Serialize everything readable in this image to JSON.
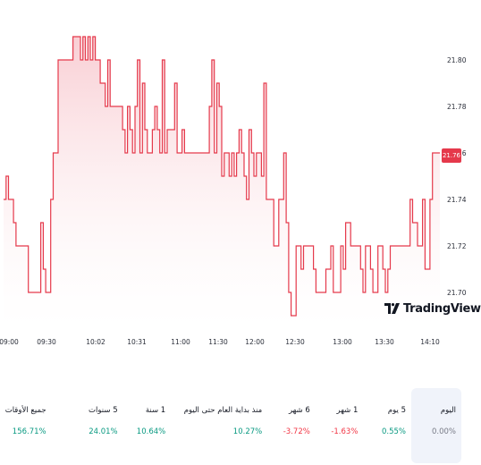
{
  "chart_data": {
    "type": "area",
    "ylim": [
      21.685,
      21.815
    ],
    "y_ticks": [
      "21.80",
      "21.78",
      "21.76",
      "21.74",
      "21.72",
      "21.70"
    ],
    "x_ticks": [
      "09:00",
      "09:30",
      "10:02",
      "10:31",
      "11:00",
      "11:30",
      "12:00",
      "12:30",
      "13:00",
      "13:30",
      "14:10"
    ],
    "last_price": "21.76",
    "series": [
      {
        "values": [
          21.74,
          21.75,
          21.74,
          21.74,
          21.73,
          21.72,
          21.72,
          21.72,
          21.72,
          21.72,
          21.7,
          21.7,
          21.7,
          21.7,
          21.7,
          21.73,
          21.71,
          21.7,
          21.7,
          21.74,
          21.76,
          21.76,
          21.8,
          21.8,
          21.8,
          21.8,
          21.8,
          21.8,
          21.81,
          21.81,
          21.81,
          21.8,
          21.81,
          21.8,
          21.81,
          21.8,
          21.81,
          21.8,
          21.8,
          21.79,
          21.79,
          21.78,
          21.8,
          21.78,
          21.78,
          21.78,
          21.78,
          21.78,
          21.77,
          21.76,
          21.78,
          21.77,
          21.76,
          21.78,
          21.8,
          21.76,
          21.79,
          21.77,
          21.76,
          21.76,
          21.77,
          21.78,
          21.77,
          21.76,
          21.8,
          21.76,
          21.77,
          21.77,
          21.77,
          21.79,
          21.76,
          21.76,
          21.77,
          21.76,
          21.76,
          21.76,
          21.76,
          21.76,
          21.76,
          21.76,
          21.76,
          21.76,
          21.76,
          21.78,
          21.8,
          21.76,
          21.79,
          21.78,
          21.75,
          21.76,
          21.76,
          21.75,
          21.76,
          21.75,
          21.76,
          21.77,
          21.76,
          21.75,
          21.74,
          21.77,
          21.76,
          21.75,
          21.76,
          21.76,
          21.75,
          21.79,
          21.74,
          21.74,
          21.74,
          21.72,
          21.72,
          21.74,
          21.74,
          21.76,
          21.73,
          21.7,
          21.69,
          21.69,
          21.72,
          21.72,
          21.71,
          21.72,
          21.72,
          21.72,
          21.72,
          21.71,
          21.7,
          21.7,
          21.7,
          21.7,
          21.71,
          21.71,
          21.72,
          21.7,
          21.7,
          21.7,
          21.72,
          21.71,
          21.73,
          21.73,
          21.72,
          21.72,
          21.72,
          21.72,
          21.71,
          21.7,
          21.72,
          21.72,
          21.71,
          21.7,
          21.7,
          21.72,
          21.72,
          21.71,
          21.7,
          21.71,
          21.72,
          21.72,
          21.72,
          21.72,
          21.72,
          21.72,
          21.72,
          21.72,
          21.74,
          21.73,
          21.73,
          21.72,
          21.72,
          21.74,
          21.71,
          21.71,
          21.74,
          21.76,
          21.76,
          21.76,
          21.76
        ]
      }
    ]
  },
  "logo": {
    "text": "TradingView"
  },
  "performance": [
    {
      "label": "اليوم",
      "value": "0.00%",
      "trend": "neutral",
      "active": true
    },
    {
      "label": "5 يوم",
      "value": "0.55%",
      "trend": "up",
      "active": false
    },
    {
      "label": "1 شهر",
      "value": "-1.63%",
      "trend": "down",
      "active": false
    },
    {
      "label": "6 شهر",
      "value": "-3.72%",
      "trend": "down",
      "active": false
    },
    {
      "label": "منذ بداية العام حتى اليوم",
      "value": "10.27%",
      "trend": "up",
      "active": false
    },
    {
      "label": "1 سنة",
      "value": "10.64%",
      "trend": "up",
      "active": false
    },
    {
      "label": "5 سنوات",
      "value": "24.01%",
      "trend": "up",
      "active": false
    },
    {
      "label": "جميع الأوقات",
      "value": "156.71%",
      "trend": "up",
      "active": false
    }
  ],
  "colors": {
    "line": "#e5394b",
    "fill_top": "#f8c9cf",
    "up": "#089981",
    "down": "#f23645",
    "neutral": "#787b86"
  }
}
